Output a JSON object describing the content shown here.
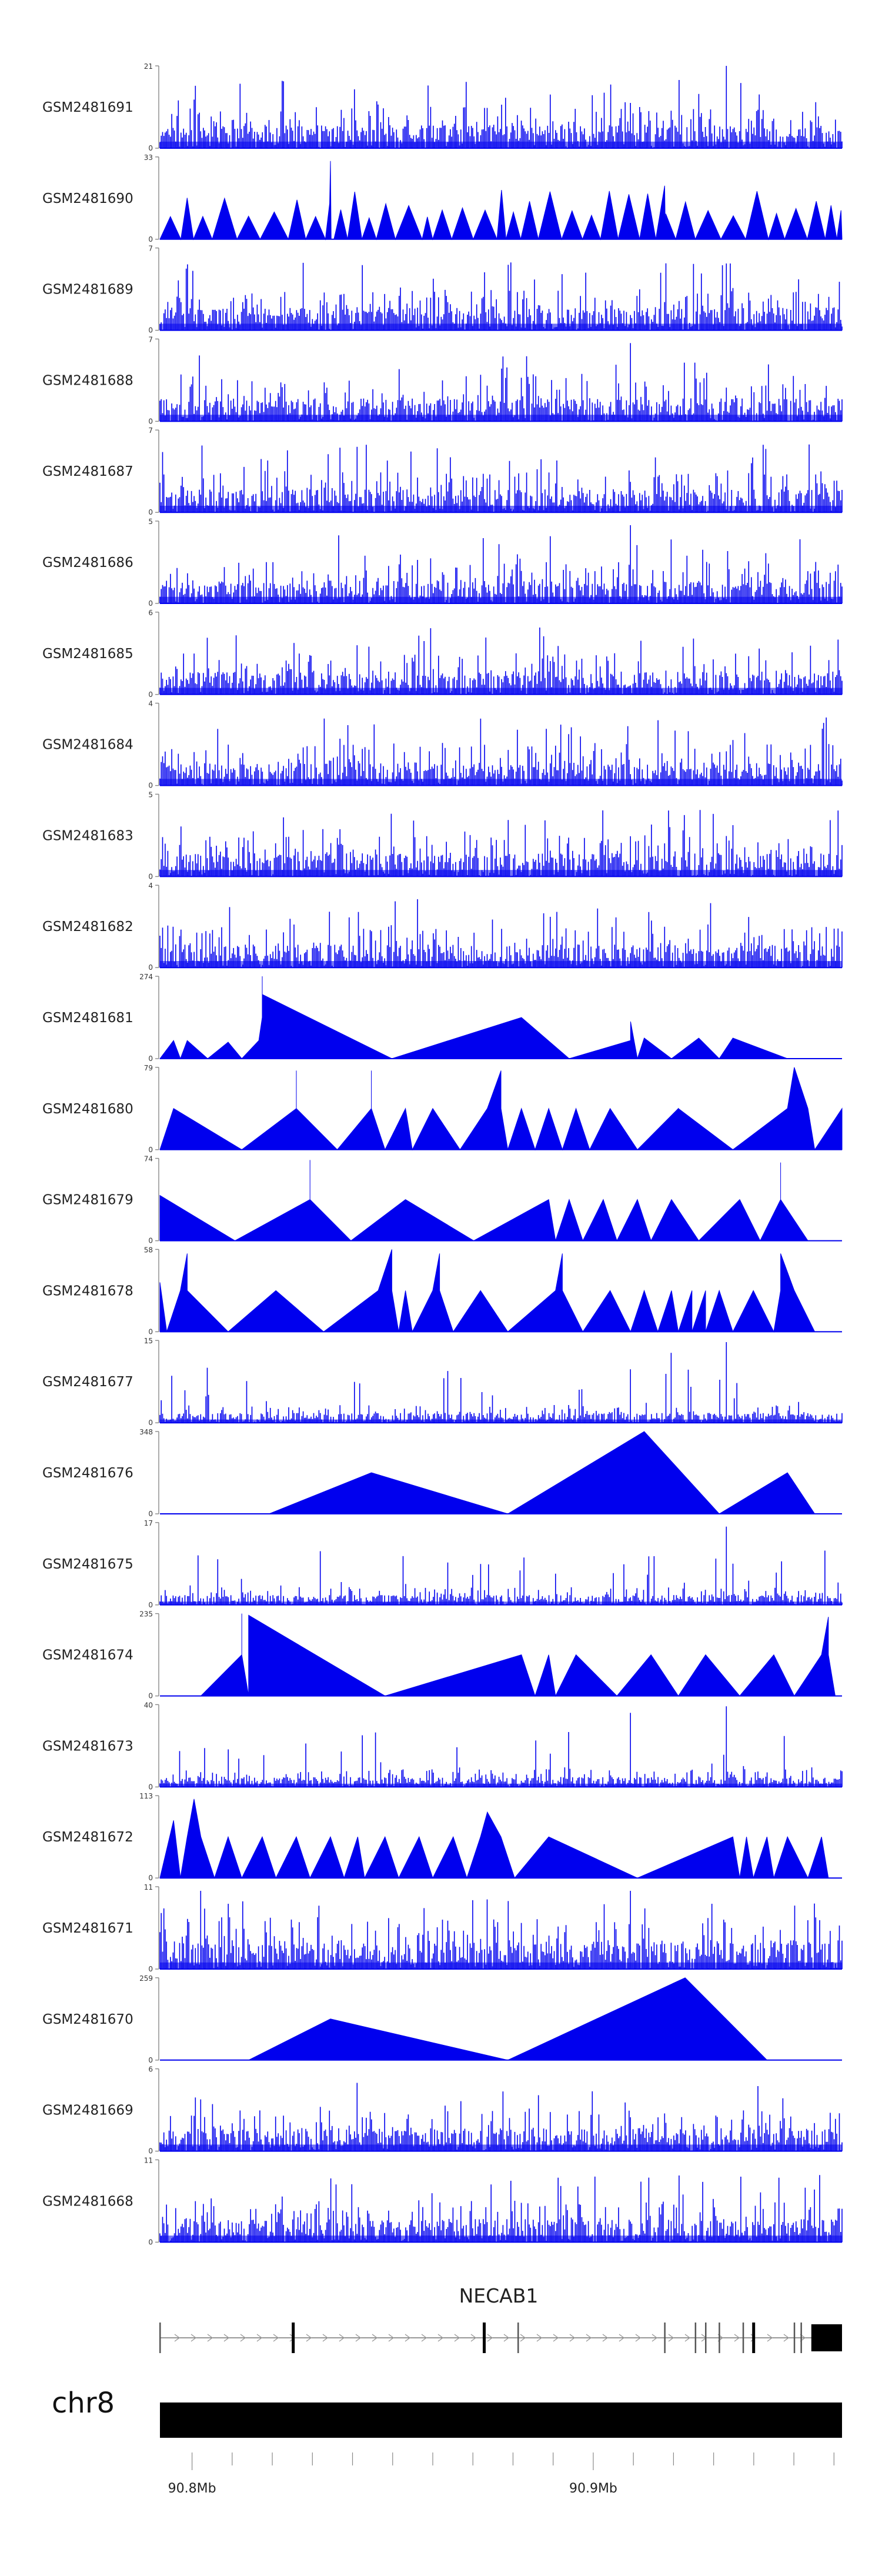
{
  "chart_data": {
    "type": "area",
    "title": "",
    "series_color": "#0000ee",
    "tracks": [
      {
        "name": "GSM2481691",
        "ymax": 21,
        "pattern": "dense",
        "spikes": [
          [
            0.69,
            0.55
          ],
          [
            0.83,
            1.0
          ]
        ]
      },
      {
        "name": "GSM2481690",
        "ymax": 33,
        "pattern": "triangles-many",
        "spikes": [
          [
            0.25,
            0.95
          ],
          [
            0.74,
            0.65
          ]
        ]
      },
      {
        "name": "GSM2481689",
        "ymax": 7,
        "pattern": "dense",
        "spikes": []
      },
      {
        "name": "GSM2481688",
        "ymax": 7,
        "pattern": "dense",
        "spikes": [
          [
            0.69,
            0.95
          ]
        ]
      },
      {
        "name": "GSM2481687",
        "ymax": 7,
        "pattern": "dense",
        "spikes": []
      },
      {
        "name": "GSM2481686",
        "ymax": 5,
        "pattern": "dense",
        "spikes": [
          [
            0.69,
            0.95
          ]
        ]
      },
      {
        "name": "GSM2481685",
        "ymax": 6,
        "pattern": "dense",
        "spikes": []
      },
      {
        "name": "GSM2481684",
        "ymax": 4,
        "pattern": "dense",
        "spikes": []
      },
      {
        "name": "GSM2481683",
        "ymax": 5,
        "pattern": "dense",
        "spikes": []
      },
      {
        "name": "GSM2481682",
        "ymax": 4,
        "pattern": "dense",
        "spikes": []
      },
      {
        "name": "GSM2481681",
        "ymax": 274,
        "pattern": "triangles",
        "peaks": [
          [
            0.0,
            0.0
          ],
          [
            0.02,
            0.22
          ],
          [
            0.03,
            0.0
          ],
          [
            0.04,
            0.22
          ],
          [
            0.07,
            0.0
          ],
          [
            0.1,
            0.2
          ],
          [
            0.12,
            0.0
          ],
          [
            0.145,
            0.22
          ],
          [
            0.15,
            0.5
          ],
          [
            0.15,
            0.75
          ],
          [
            0.15,
            1.0
          ],
          [
            0.15,
            0.78
          ],
          [
            0.34,
            0.0
          ],
          [
            0.53,
            0.5
          ],
          [
            0.6,
            0.0
          ],
          [
            0.69,
            0.22
          ],
          [
            0.69,
            0.45
          ],
          [
            0.7,
            0.0
          ],
          [
            0.71,
            0.25
          ],
          [
            0.75,
            0.0
          ],
          [
            0.79,
            0.25
          ],
          [
            0.82,
            0.0
          ],
          [
            0.84,
            0.25
          ],
          [
            0.92,
            0.0
          ]
        ]
      },
      {
        "name": "GSM2481680",
        "ymax": 79,
        "pattern": "triangles",
        "peaks": [
          [
            0.0,
            0.0
          ],
          [
            0.02,
            0.5
          ],
          [
            0.12,
            0.0
          ],
          [
            0.2,
            0.5
          ],
          [
            0.2,
            0.96
          ],
          [
            0.2,
            0.5
          ],
          [
            0.26,
            0.0
          ],
          [
            0.31,
            0.5
          ],
          [
            0.31,
            0.96
          ],
          [
            0.31,
            0.5
          ],
          [
            0.33,
            0.0
          ],
          [
            0.36,
            0.5
          ],
          [
            0.37,
            0.0
          ],
          [
            0.4,
            0.5
          ],
          [
            0.44,
            0.0
          ],
          [
            0.48,
            0.5
          ],
          [
            0.5,
            0.96
          ],
          [
            0.5,
            0.5
          ],
          [
            0.51,
            0.0
          ],
          [
            0.53,
            0.5
          ],
          [
            0.55,
            0.0
          ],
          [
            0.57,
            0.5
          ],
          [
            0.59,
            0.0
          ],
          [
            0.61,
            0.5
          ],
          [
            0.63,
            0.0
          ],
          [
            0.66,
            0.5
          ],
          [
            0.7,
            0.0
          ],
          [
            0.76,
            0.5
          ],
          [
            0.76,
            0.0
          ],
          [
            0.76,
            0.5
          ],
          [
            0.84,
            0.0
          ],
          [
            0.92,
            0.5
          ],
          [
            0.93,
            1.0
          ],
          [
            0.95,
            0.5
          ],
          [
            0.96,
            0.0
          ],
          [
            1.0,
            0.5
          ]
        ]
      },
      {
        "name": "GSM2481679",
        "ymax": 74,
        "pattern": "triangles",
        "peaks": [
          [
            0.0,
            0.55
          ],
          [
            0.11,
            0.0
          ],
          [
            0.22,
            0.5
          ],
          [
            0.22,
            0.98
          ],
          [
            0.22,
            0.5
          ],
          [
            0.28,
            0.0
          ],
          [
            0.36,
            0.5
          ],
          [
            0.46,
            0.0
          ],
          [
            0.57,
            0.5
          ],
          [
            0.58,
            0.0
          ],
          [
            0.6,
            0.5
          ],
          [
            0.62,
            0.0
          ],
          [
            0.65,
            0.5
          ],
          [
            0.67,
            0.0
          ],
          [
            0.7,
            0.5
          ],
          [
            0.72,
            0.0
          ],
          [
            0.75,
            0.5
          ],
          [
            0.79,
            0.0
          ],
          [
            0.85,
            0.5
          ],
          [
            0.88,
            0.0
          ],
          [
            0.91,
            0.5
          ],
          [
            0.91,
            0.95
          ],
          [
            0.91,
            0.5
          ],
          [
            0.95,
            0.0
          ]
        ]
      },
      {
        "name": "GSM2481678",
        "ymax": 58,
        "pattern": "triangles",
        "peaks": [
          [
            0.0,
            0.2
          ],
          [
            0.0,
            0.6
          ],
          [
            0.01,
            0.0
          ],
          [
            0.03,
            0.5
          ],
          [
            0.04,
            0.95
          ],
          [
            0.04,
            0.5
          ],
          [
            0.1,
            0.0
          ],
          [
            0.17,
            0.5
          ],
          [
            0.24,
            0.0
          ],
          [
            0.32,
            0.5
          ],
          [
            0.34,
            1.0
          ],
          [
            0.34,
            0.5
          ],
          [
            0.35,
            0.0
          ],
          [
            0.36,
            0.5
          ],
          [
            0.37,
            0.0
          ],
          [
            0.4,
            0.5
          ],
          [
            0.41,
            0.95
          ],
          [
            0.41,
            0.5
          ],
          [
            0.43,
            0.0
          ],
          [
            0.47,
            0.5
          ],
          [
            0.51,
            0.0
          ],
          [
            0.58,
            0.5
          ],
          [
            0.59,
            0.95
          ],
          [
            0.59,
            0.5
          ],
          [
            0.62,
            0.0
          ],
          [
            0.66,
            0.5
          ],
          [
            0.69,
            0.0
          ],
          [
            0.71,
            0.5
          ],
          [
            0.73,
            0.0
          ],
          [
            0.75,
            0.5
          ],
          [
            0.76,
            0.0
          ],
          [
            0.78,
            0.5
          ],
          [
            0.78,
            0.0
          ],
          [
            0.8,
            0.5
          ],
          [
            0.8,
            0.0
          ],
          [
            0.82,
            0.5
          ],
          [
            0.84,
            0.0
          ],
          [
            0.87,
            0.5
          ],
          [
            0.9,
            0.0
          ],
          [
            0.91,
            0.5
          ],
          [
            0.91,
            0.95
          ],
          [
            0.93,
            0.5
          ],
          [
            0.96,
            0.0
          ]
        ]
      },
      {
        "name": "GSM2481677",
        "ymax": 15,
        "pattern": "dense-low",
        "spikes": [
          [
            0.69,
            0.65
          ],
          [
            0.75,
            0.85
          ],
          [
            0.83,
            0.98
          ]
        ]
      },
      {
        "name": "GSM2481676",
        "ymax": 348,
        "pattern": "triangles",
        "peaks": [
          [
            0.16,
            0.0
          ],
          [
            0.31,
            0.5
          ],
          [
            0.51,
            0.0
          ],
          [
            0.71,
            1.0
          ],
          [
            0.82,
            0.0
          ],
          [
            0.92,
            0.5
          ],
          [
            0.96,
            0.0
          ]
        ]
      },
      {
        "name": "GSM2481675",
        "ymax": 17,
        "pattern": "dense-low",
        "spikes": [
          [
            0.83,
            0.95
          ],
          [
            0.84,
            0.5
          ]
        ]
      },
      {
        "name": "GSM2481674",
        "ymax": 235,
        "pattern": "triangles",
        "peaks": [
          [
            0.06,
            0.0
          ],
          [
            0.12,
            0.5
          ],
          [
            0.12,
            1.0
          ],
          [
            0.12,
            0.5
          ],
          [
            0.13,
            0.0
          ],
          [
            0.13,
            0.98
          ],
          [
            0.33,
            0.0
          ],
          [
            0.53,
            0.5
          ],
          [
            0.55,
            0.0
          ],
          [
            0.57,
            0.5
          ],
          [
            0.58,
            0.0
          ],
          [
            0.61,
            0.5
          ],
          [
            0.67,
            0.0
          ],
          [
            0.72,
            0.5
          ],
          [
            0.76,
            0.0
          ],
          [
            0.8,
            0.5
          ],
          [
            0.85,
            0.0
          ],
          [
            0.9,
            0.5
          ],
          [
            0.93,
            0.0
          ],
          [
            0.97,
            0.5
          ],
          [
            0.98,
            0.96
          ],
          [
            0.98,
            0.5
          ],
          [
            0.99,
            0.0
          ]
        ]
      },
      {
        "name": "GSM2481673",
        "ymax": 40,
        "pattern": "dense-low",
        "spikes": [
          [
            0.69,
            0.9
          ],
          [
            0.83,
            0.98
          ]
        ]
      },
      {
        "name": "GSM2481672",
        "ymax": 113,
        "pattern": "triangles",
        "peaks": [
          [
            0.0,
            0.0
          ],
          [
            0.02,
            0.7
          ],
          [
            0.03,
            0.0
          ],
          [
            0.04,
            0.5
          ],
          [
            0.05,
            0.96
          ],
          [
            0.06,
            0.5
          ],
          [
            0.08,
            0.0
          ],
          [
            0.1,
            0.5
          ],
          [
            0.12,
            0.0
          ],
          [
            0.15,
            0.5
          ],
          [
            0.17,
            0.0
          ],
          [
            0.2,
            0.5
          ],
          [
            0.22,
            0.0
          ],
          [
            0.25,
            0.5
          ],
          [
            0.27,
            0.0
          ],
          [
            0.29,
            0.5
          ],
          [
            0.3,
            0.0
          ],
          [
            0.33,
            0.5
          ],
          [
            0.35,
            0.0
          ],
          [
            0.38,
            0.5
          ],
          [
            0.4,
            0.0
          ],
          [
            0.43,
            0.5
          ],
          [
            0.45,
            0.0
          ],
          [
            0.47,
            0.5
          ],
          [
            0.48,
            0.8
          ],
          [
            0.5,
            0.5
          ],
          [
            0.52,
            0.0
          ],
          [
            0.57,
            0.5
          ],
          [
            0.7,
            0.0
          ],
          [
            0.84,
            0.5
          ],
          [
            0.85,
            0.0
          ],
          [
            0.86,
            0.5
          ],
          [
            0.87,
            0.0
          ],
          [
            0.89,
            0.5
          ],
          [
            0.9,
            0.0
          ],
          [
            0.92,
            0.5
          ],
          [
            0.95,
            0.0
          ],
          [
            0.97,
            0.5
          ],
          [
            0.98,
            0.0
          ]
        ]
      },
      {
        "name": "GSM2481671",
        "ymax": 11,
        "pattern": "dense-high",
        "spikes": [
          [
            0.06,
            0.95
          ],
          [
            0.69,
            0.95
          ]
        ]
      },
      {
        "name": "GSM2481670",
        "ymax": 259,
        "pattern": "triangles",
        "peaks": [
          [
            0.13,
            0.0
          ],
          [
            0.25,
            0.5
          ],
          [
            0.51,
            0.0
          ],
          [
            0.77,
            1.0
          ],
          [
            0.89,
            0.0
          ]
        ]
      },
      {
        "name": "GSM2481669",
        "ymax": 6,
        "pattern": "dense",
        "spikes": []
      },
      {
        "name": "GSM2481668",
        "ymax": 11,
        "pattern": "dense",
        "spikes": []
      }
    ],
    "gene": {
      "name": "NECAB1",
      "exons_x": [
        0.0,
        0.195,
        0.475,
        0.525,
        0.74,
        0.785,
        0.8,
        0.82,
        0.855,
        0.87,
        0.93,
        0.94
      ],
      "major_exons_x": [
        0.195,
        0.475,
        0.87
      ],
      "utr_start_x": 0.955,
      "utr_end_x": 1.0
    },
    "chromosome": {
      "label": "chr8",
      "xlim_mb": [
        90.792,
        90.962
      ]
    },
    "ticks_mb": [
      90.8,
      90.81,
      90.82,
      90.83,
      90.84,
      90.85,
      90.86,
      90.87,
      90.88,
      90.89,
      90.9,
      90.91,
      90.92,
      90.93,
      90.94,
      90.95,
      90.96
    ],
    "tick_labels": [
      {
        "mb": 90.8,
        "label": "90.8Mb"
      },
      {
        "mb": 90.9,
        "label": "90.9Mb"
      }
    ]
  }
}
